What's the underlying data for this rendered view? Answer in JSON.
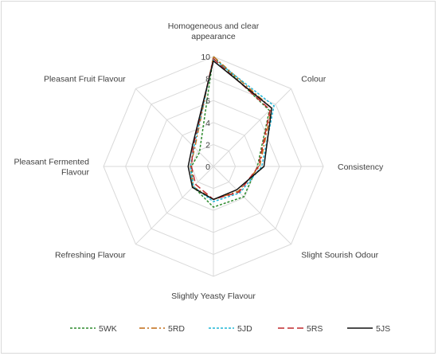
{
  "chart_data": {
    "type": "radar",
    "axes": [
      [
        "Homogeneous and clear",
        "appearance"
      ],
      [
        "Colour"
      ],
      [
        "Consistency"
      ],
      [
        "Slight Sourish Odour"
      ],
      [
        "Slightly Yeasty Flavour"
      ],
      [
        "Refreshing Flavour"
      ],
      [
        "Pleasant Fermented",
        "Flavour"
      ],
      [
        "Pleasant Fruit Flavour"
      ]
    ],
    "rlim": [
      0,
      10
    ],
    "ticks": [
      0,
      2,
      4,
      6,
      8,
      10
    ],
    "grid": true,
    "legend_position": "bottom",
    "series": [
      {
        "name": "5WK",
        "color": "#2e8b2e",
        "dash": "3,2",
        "values": [
          10,
          7.2,
          4.0,
          3.9,
          3.7,
          2.6,
          2.0,
          1.8
        ]
      },
      {
        "name": "5RD",
        "color": "#c06a14",
        "dash": "7,3,2,3",
        "values": [
          10,
          7.5,
          4.2,
          3.2,
          3.0,
          2.6,
          2.1,
          2.4
        ]
      },
      {
        "name": "5JD",
        "color": "#1fb5d6",
        "dash": "3,2",
        "values": [
          9.8,
          7.8,
          4.4,
          3.4,
          3.2,
          2.6,
          2.1,
          2.5
        ]
      },
      {
        "name": "5RS",
        "color": "#c0282d",
        "dash": "8,4",
        "values": [
          9.8,
          7.3,
          4.1,
          3.3,
          3.0,
          2.3,
          2.0,
          2.6
        ]
      },
      {
        "name": "5JS",
        "color": "#111111",
        "dash": "",
        "values": [
          9.6,
          7.5,
          4.6,
          3.0,
          3.0,
          2.7,
          2.3,
          2.7
        ]
      }
    ]
  }
}
